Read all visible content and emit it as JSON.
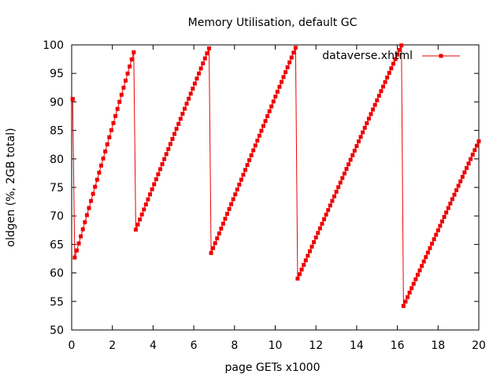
{
  "chart_data": {
    "type": "line",
    "title": "Memory Utilisation, default GC",
    "xlabel": "page GETs x1000",
    "ylabel": "oldgen (%, 2GB total)",
    "xlim": [
      0,
      20
    ],
    "ylim": [
      50,
      100
    ],
    "x_ticks": [
      "0",
      "2",
      "4",
      "6",
      "8",
      "10",
      "12",
      "14",
      "16",
      "18",
      "20"
    ],
    "y_ticks": [
      "50",
      "55",
      "60",
      "65",
      "70",
      "75",
      "80",
      "85",
      "90",
      "95",
      "100"
    ],
    "grid": false,
    "legend": "top-right",
    "series_color": "#ee0000",
    "series": [
      {
        "name": "dataverse.xhtml",
        "segments": [
          {
            "x0": 0.05,
            "y0": 90.5,
            "x1": 0.05,
            "y1": 90.5,
            "step": 0.1
          },
          {
            "x0": 0.15,
            "y0": 62.7,
            "x1": 3.05,
            "y1": 98.7,
            "step": 0.1
          },
          {
            "x0": 3.15,
            "y0": 67.6,
            "x1": 6.75,
            "y1": 99.4,
            "step": 0.1
          },
          {
            "x0": 6.85,
            "y0": 63.5,
            "x1": 11.0,
            "y1": 99.5,
            "step": 0.1
          },
          {
            "x0": 11.1,
            "y0": 59.0,
            "x1": 16.2,
            "y1": 99.9,
            "step": 0.1
          },
          {
            "x0": 16.3,
            "y0": 54.2,
            "x1": 20.0,
            "y1": 83.1,
            "step": 0.1
          }
        ]
      }
    ]
  }
}
